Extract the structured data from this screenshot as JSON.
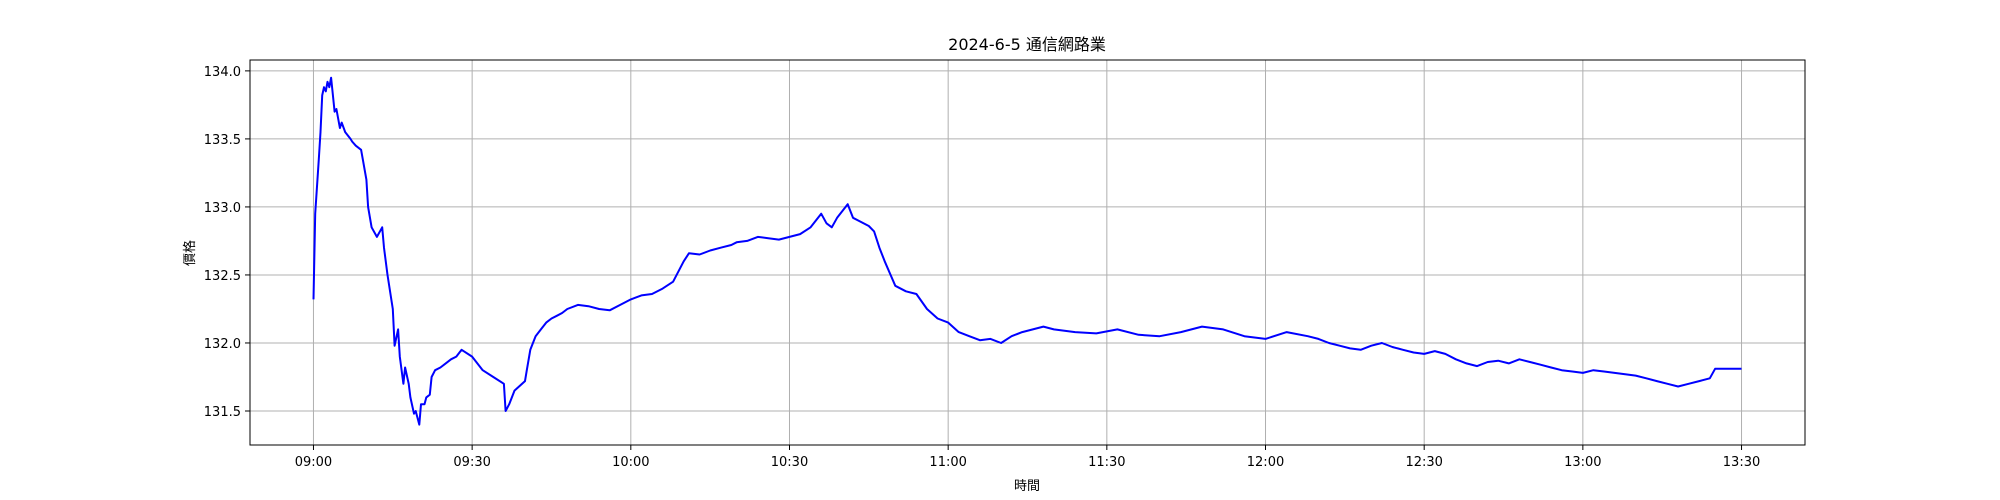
{
  "chart_data": {
    "type": "line",
    "title": "2024-6-5 通信網路業",
    "xlabel": "時間",
    "ylabel": "價格",
    "xlim": [
      "08:48",
      "13:42"
    ],
    "ylim": [
      131.25,
      134.08
    ],
    "grid": true,
    "x_ticks": [
      "09:00",
      "09:30",
      "10:00",
      "10:30",
      "11:00",
      "11:30",
      "12:00",
      "12:30",
      "13:00",
      "13:30"
    ],
    "y_ticks": [
      "131.5",
      "132.0",
      "132.5",
      "133.0",
      "133.5",
      "134.0"
    ],
    "colors": {
      "line": "#0000ff",
      "grid": "#b0b0b0",
      "axes": "#000000"
    },
    "series": [
      {
        "x": [
          "09:00",
          "09:00",
          "09:01",
          "09:01",
          "09:01",
          "09:02",
          "09:02",
          "09:02",
          "09:03",
          "09:03",
          "09:04",
          "09:04",
          "09:05",
          "09:05",
          "09:06",
          "09:07",
          "09:07",
          "09:08",
          "09:09",
          "09:09",
          "09:10",
          "09:10",
          "09:11",
          "09:12",
          "09:13",
          "09:13",
          "09:14",
          "09:15",
          "09:15",
          "09:16",
          "09:16",
          "09:17",
          "09:17",
          "09:18",
          "09:18",
          "09:19",
          "09:19",
          "09:20",
          "09:20",
          "09:21",
          "09:21",
          "09:22",
          "09:22",
          "09:23",
          "09:24",
          "09:25",
          "09:26",
          "09:27",
          "09:28",
          "09:30",
          "09:32",
          "09:34",
          "09:36",
          "09:36",
          "09:37",
          "09:38",
          "09:40",
          "09:40",
          "09:41",
          "09:42",
          "09:43",
          "09:44",
          "09:45",
          "09:46",
          "09:47",
          "09:48",
          "09:50",
          "09:52",
          "09:54",
          "09:56",
          "09:58",
          "10:00",
          "10:02",
          "10:04",
          "10:06",
          "10:08",
          "10:10",
          "10:11",
          "10:13",
          "10:15",
          "10:17",
          "10:19",
          "10:20",
          "10:22",
          "10:24",
          "10:26",
          "10:28",
          "10:30",
          "10:32",
          "10:34",
          "10:35",
          "10:36",
          "10:37",
          "10:38",
          "10:39",
          "10:40",
          "10:41",
          "10:42",
          "10:43",
          "10:44",
          "10:45",
          "10:46",
          "10:47",
          "10:48",
          "10:50",
          "10:52",
          "10:54",
          "10:56",
          "10:58",
          "11:00",
          "11:02",
          "11:04",
          "11:06",
          "11:08",
          "11:10",
          "11:12",
          "11:14",
          "11:16",
          "11:18",
          "11:20",
          "11:24",
          "11:28",
          "11:32",
          "11:36",
          "11:40",
          "11:44",
          "11:48",
          "11:52",
          "11:56",
          "12:00",
          "12:04",
          "12:08",
          "12:10",
          "12:12",
          "12:14",
          "12:16",
          "12:18",
          "12:20",
          "12:22",
          "12:24",
          "12:26",
          "12:28",
          "12:30",
          "12:32",
          "12:34",
          "12:36",
          "12:38",
          "12:40",
          "12:42",
          "12:44",
          "12:46",
          "12:48",
          "12:50",
          "12:52",
          "12:54",
          "12:56",
          "12:58",
          "13:00",
          "13:02",
          "13:04",
          "13:06",
          "13:08",
          "13:10",
          "13:12",
          "13:14",
          "13:16",
          "13:18",
          "13:20",
          "13:22",
          "13:24",
          "13:25",
          "13:25",
          "13:30"
        ],
        "y": [
          132.32,
          132.95,
          133.35,
          133.55,
          133.82,
          133.88,
          133.85,
          133.92,
          133.88,
          133.95,
          133.7,
          133.72,
          133.58,
          133.62,
          133.55,
          133.5,
          133.48,
          133.45,
          133.42,
          133.35,
          133.2,
          133.0,
          132.85,
          132.78,
          132.85,
          132.7,
          132.5,
          132.25,
          131.98,
          132.1,
          131.9,
          131.7,
          131.82,
          131.7,
          131.6,
          131.48,
          131.5,
          131.4,
          131.55,
          131.55,
          131.6,
          131.62,
          131.75,
          131.8,
          131.82,
          131.85,
          131.88,
          131.9,
          131.95,
          131.9,
          131.8,
          131.75,
          131.7,
          131.5,
          131.55,
          131.65,
          131.72,
          131.8,
          131.95,
          132.05,
          132.1,
          132.15,
          132.18,
          132.2,
          132.22,
          132.25,
          132.28,
          132.27,
          132.25,
          132.24,
          132.28,
          132.32,
          132.35,
          132.36,
          132.4,
          132.45,
          132.6,
          132.66,
          132.65,
          132.68,
          132.7,
          132.72,
          132.74,
          132.75,
          132.78,
          132.77,
          132.76,
          132.78,
          132.8,
          132.85,
          132.9,
          132.95,
          132.88,
          132.85,
          132.92,
          132.97,
          133.02,
          132.92,
          132.9,
          132.88,
          132.86,
          132.82,
          132.7,
          132.6,
          132.42,
          132.38,
          132.36,
          132.25,
          132.18,
          132.15,
          132.08,
          132.05,
          132.02,
          132.03,
          132.0,
          132.05,
          132.08,
          132.1,
          132.12,
          132.1,
          132.08,
          132.07,
          132.1,
          132.06,
          132.05,
          132.08,
          132.12,
          132.1,
          132.05,
          132.03,
          132.08,
          132.05,
          132.03,
          132.0,
          131.98,
          131.96,
          131.95,
          131.98,
          132.0,
          131.97,
          131.95,
          131.93,
          131.92,
          131.94,
          131.92,
          131.88,
          131.85,
          131.83,
          131.86,
          131.87,
          131.85,
          131.88,
          131.86,
          131.84,
          131.82,
          131.8,
          131.79,
          131.78,
          131.8,
          131.79,
          131.78,
          131.77,
          131.76,
          131.74,
          131.72,
          131.7,
          131.68,
          131.7,
          131.72,
          131.74,
          131.81,
          131.81,
          131.81
        ]
      }
    ]
  }
}
